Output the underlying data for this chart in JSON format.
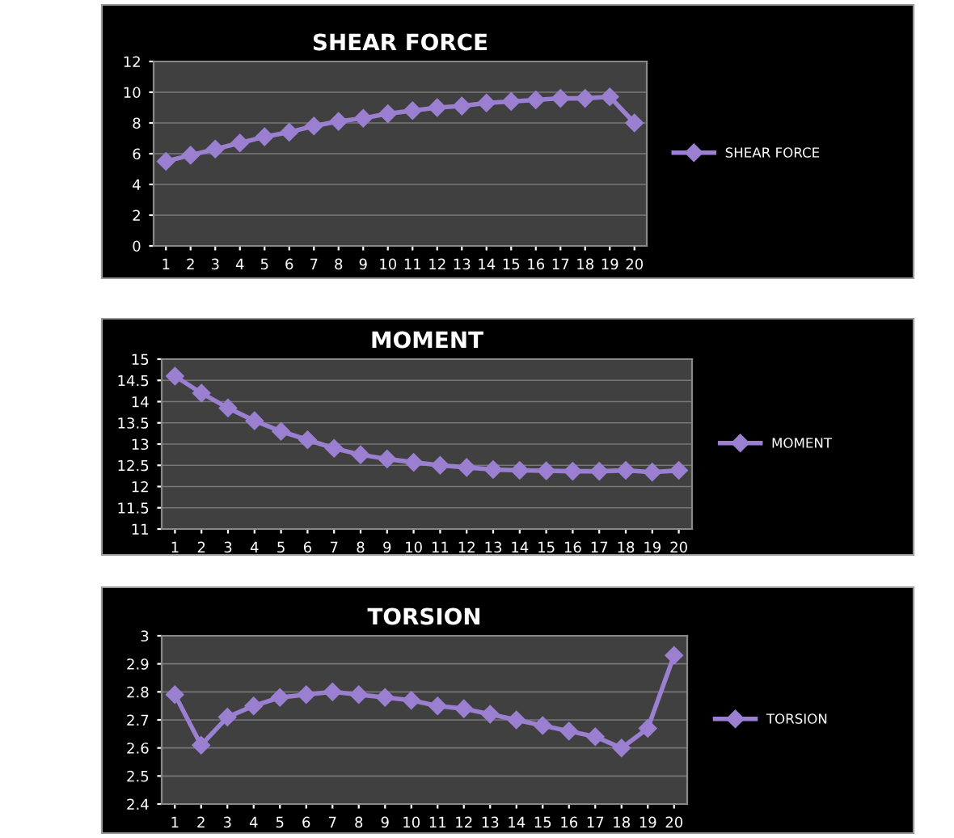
{
  "chart_data": [
    {
      "type": "line",
      "title": "SHEAR FORCE",
      "categories": [
        "1",
        "2",
        "3",
        "4",
        "5",
        "6",
        "7",
        "8",
        "9",
        "10",
        "11",
        "12",
        "13",
        "14",
        "15",
        "16",
        "17",
        "18",
        "19",
        "20"
      ],
      "series": [
        {
          "name": "SHEAR FORCE",
          "color": "#9b7fd0",
          "values": [
            5.5,
            5.9,
            6.3,
            6.7,
            7.1,
            7.4,
            7.8,
            8.1,
            8.3,
            8.6,
            8.8,
            9.0,
            9.1,
            9.3,
            9.4,
            9.5,
            9.6,
            9.6,
            9.7,
            8.0
          ]
        }
      ],
      "ylim": [
        0,
        12
      ],
      "yticks": [
        0,
        2,
        4,
        6,
        8,
        10,
        12
      ],
      "grid": "y",
      "legend": "right",
      "marker": "diamond",
      "line_style": "solid"
    },
    {
      "type": "line",
      "title": "MOMENT",
      "categories": [
        "1",
        "2",
        "3",
        "4",
        "5",
        "6",
        "7",
        "8",
        "9",
        "10",
        "11",
        "12",
        "13",
        "14",
        "15",
        "16",
        "17",
        "18",
        "19",
        "20"
      ],
      "series": [
        {
          "name": "MOMENT",
          "color": "#9b7fd0",
          "values": [
            14.6,
            14.2,
            13.85,
            13.55,
            13.3,
            13.1,
            12.9,
            12.75,
            12.65,
            12.57,
            12.5,
            12.45,
            12.4,
            12.38,
            12.37,
            12.36,
            12.36,
            12.38,
            12.34,
            12.38
          ]
        }
      ],
      "ylim": [
        11,
        15
      ],
      "yticks": [
        11,
        11.5,
        12,
        12.5,
        13,
        13.5,
        14,
        14.5,
        15
      ],
      "grid": "y",
      "legend": "right",
      "marker": "diamond",
      "line_style": "solid"
    },
    {
      "type": "line",
      "title": "TORSION",
      "categories": [
        "1",
        "2",
        "3",
        "4",
        "5",
        "6",
        "7",
        "8",
        "9",
        "10",
        "11",
        "12",
        "13",
        "14",
        "15",
        "16",
        "17",
        "18",
        "19",
        "20"
      ],
      "series": [
        {
          "name": "TORSION",
          "color": "#9b7fd0",
          "values": [
            2.79,
            2.61,
            2.71,
            2.75,
            2.78,
            2.79,
            2.8,
            2.79,
            2.78,
            2.77,
            2.75,
            2.74,
            2.72,
            2.7,
            2.68,
            2.66,
            2.64,
            2.6,
            2.67,
            2.93
          ]
        }
      ],
      "ylim": [
        2.4,
        3
      ],
      "yticks": [
        2.4,
        2.5,
        2.6,
        2.7,
        2.8,
        2.9,
        3
      ],
      "grid": "y",
      "legend": "right",
      "marker": "diamond",
      "line_style": "solid"
    }
  ]
}
